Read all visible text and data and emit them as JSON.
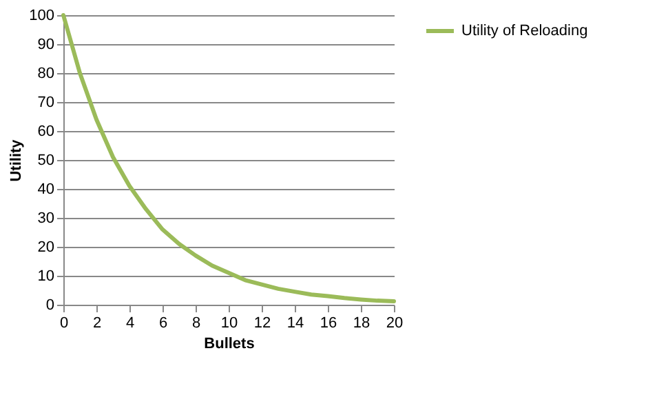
{
  "chart_data": {
    "type": "line",
    "xlabel": "Bullets",
    "ylabel": "Utility",
    "x": [
      0,
      1,
      2,
      3,
      4,
      5,
      6,
      7,
      8,
      9,
      10,
      11,
      12,
      13,
      14,
      15,
      16,
      17,
      18,
      19,
      20
    ],
    "series": [
      {
        "name": "Utility of Reloading",
        "color": "#9bbb59",
        "values": [
          100,
          80,
          64,
          51,
          41,
          33,
          26,
          21,
          17,
          13.5,
          11,
          8.5,
          7,
          5.5,
          4.5,
          3.5,
          3,
          2.3,
          1.8,
          1.4,
          1.2
        ]
      }
    ],
    "xlim": [
      0,
      20
    ],
    "xticks": [
      0,
      2,
      4,
      6,
      8,
      10,
      12,
      14,
      16,
      18,
      20
    ],
    "ylim": [
      0,
      100
    ],
    "yticks": [
      0,
      10,
      20,
      30,
      40,
      50,
      60,
      70,
      80,
      90,
      100
    ],
    "grid": "y",
    "legend": "right",
    "marker": "none",
    "line_style": "solid"
  }
}
